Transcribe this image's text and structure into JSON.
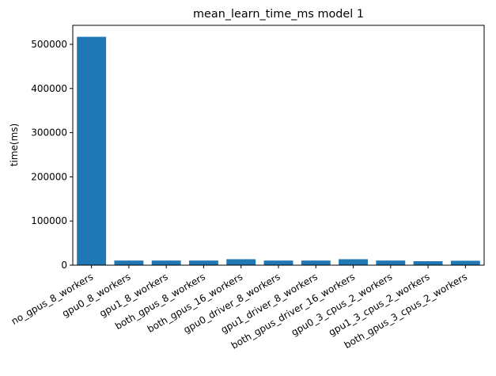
{
  "chart_data": {
    "type": "bar",
    "title": "mean_learn_time_ms model 1",
    "xlabel": "",
    "ylabel": "time(ms)",
    "ylim": [
      0,
      543000
    ],
    "yticks": [
      0,
      100000,
      200000,
      300000,
      400000,
      500000
    ],
    "grid": false,
    "bar_color": "#1f77b4",
    "categories": [
      "no_gpus_8_workers",
      "gpu0_8_workers",
      "gpu1_8_workers",
      "both_gpus_8_workers",
      "both_gpus_16_workers",
      "gpu0_driver_8_workers",
      "gpu1_driver_8_workers",
      "both_gpus_driver_16_workers",
      "gpu0_3_cpus_2_workers",
      "gpu1_3_cpus_2_workers",
      "both_gpus_3_cpus_2_workers"
    ],
    "values": [
      517000,
      10500,
      10500,
      10500,
      13500,
      10500,
      10500,
      13500,
      10500,
      9000,
      10000
    ]
  }
}
